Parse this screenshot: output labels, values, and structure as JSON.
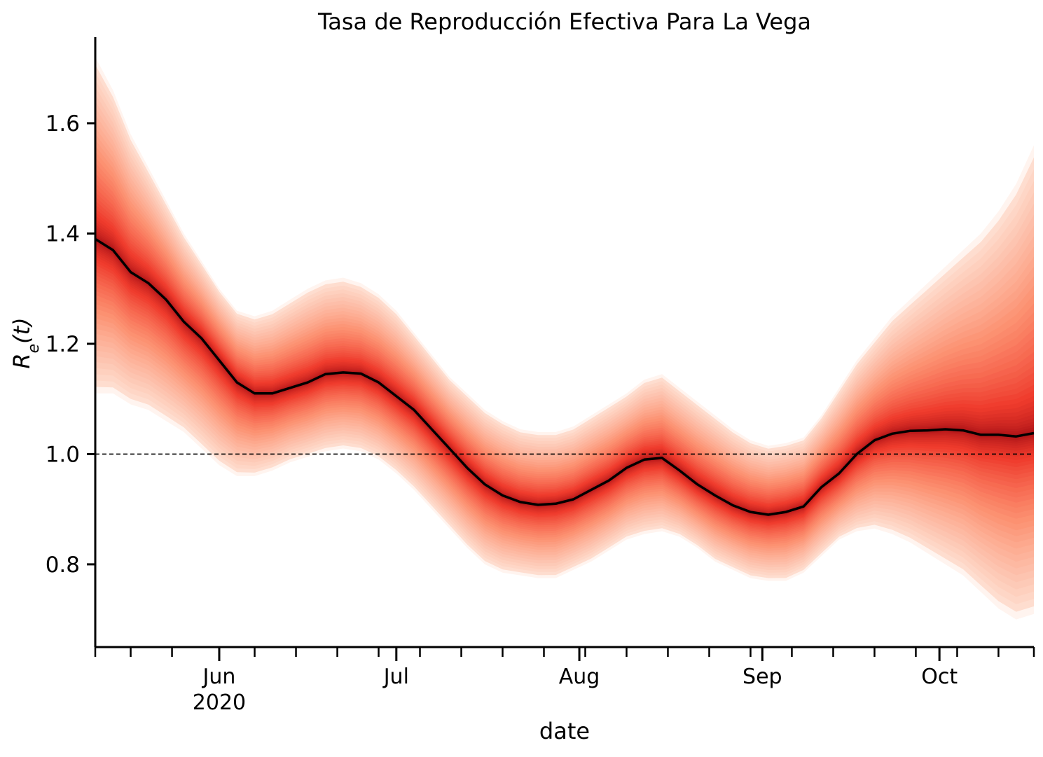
{
  "chart_data": {
    "type": "area",
    "title": "Tasa de Reproducción Efectiva Para La Vega",
    "xlabel": "date",
    "ylabel_base": "R",
    "ylabel_sub": "e",
    "ylabel_rest": "(t)",
    "xlim": [
      "2020-05-11",
      "2020-10-17"
    ],
    "ylim": [
      0.65,
      1.76
    ],
    "grid": false,
    "legend": "none",
    "x_ticks_major": [
      {
        "date": "2020-06-01",
        "label": "Jun",
        "sublabel": "2020"
      },
      {
        "date": "2020-07-01",
        "label": "Jul",
        "sublabel": ""
      },
      {
        "date": "2020-08-01",
        "label": "Aug",
        "sublabel": ""
      },
      {
        "date": "2020-09-01",
        "label": "Sep",
        "sublabel": ""
      },
      {
        "date": "2020-10-01",
        "label": "Oct",
        "sublabel": ""
      }
    ],
    "x_ticks_minor": [
      "2020-05-11",
      "2020-05-17",
      "2020-05-24",
      "2020-06-07",
      "2020-06-14",
      "2020-06-21",
      "2020-06-28",
      "2020-07-05",
      "2020-07-12",
      "2020-07-19",
      "2020-07-26",
      "2020-08-02",
      "2020-08-09",
      "2020-08-16",
      "2020-08-23",
      "2020-08-30",
      "2020-09-06",
      "2020-09-13",
      "2020-09-20",
      "2020-09-27",
      "2020-10-04",
      "2020-10-11",
      "2020-10-17"
    ],
    "y_ticks": [
      {
        "value": 0.8,
        "label": "0.8"
      },
      {
        "value": 1.0,
        "label": "1.0"
      },
      {
        "value": 1.2,
        "label": "1.2"
      },
      {
        "value": 1.4,
        "label": "1.4"
      },
      {
        "value": 1.6,
        "label": "1.6"
      }
    ],
    "reference_line": {
      "y": 1.0,
      "style": "dashed"
    },
    "colors": {
      "line": "#000000",
      "band_core": "#a50f15",
      "band_mid": "#ef3b2c",
      "band_outer": "#fc9272",
      "band_edge": "#fee0d2"
    },
    "series": [
      {
        "x": [
          "2020-05-11",
          "2020-05-14",
          "2020-05-17",
          "2020-05-20",
          "2020-05-23",
          "2020-05-26",
          "2020-05-29",
          "2020-06-01",
          "2020-06-04",
          "2020-06-07",
          "2020-06-10",
          "2020-06-13",
          "2020-06-16",
          "2020-06-19",
          "2020-06-22",
          "2020-06-25",
          "2020-06-28",
          "2020-07-01",
          "2020-07-04",
          "2020-07-07",
          "2020-07-10",
          "2020-07-13",
          "2020-07-16",
          "2020-07-19",
          "2020-07-22",
          "2020-07-25",
          "2020-07-28",
          "2020-07-31",
          "2020-08-03",
          "2020-08-06",
          "2020-08-09",
          "2020-08-12",
          "2020-08-15",
          "2020-08-18",
          "2020-08-21",
          "2020-08-24",
          "2020-08-27",
          "2020-08-30",
          "2020-09-02",
          "2020-09-05",
          "2020-09-08",
          "2020-09-11",
          "2020-09-14",
          "2020-09-17",
          "2020-09-20",
          "2020-09-23",
          "2020-09-26",
          "2020-09-29",
          "2020-10-02",
          "2020-10-05",
          "2020-10-08",
          "2020-10-11",
          "2020-10-14",
          "2020-10-17"
        ],
        "median": [
          1.39,
          1.37,
          1.33,
          1.31,
          1.28,
          1.24,
          1.21,
          1.17,
          1.13,
          1.11,
          1.11,
          1.12,
          1.13,
          1.145,
          1.148,
          1.146,
          1.13,
          1.105,
          1.08,
          1.045,
          1.01,
          0.975,
          0.945,
          0.925,
          0.913,
          0.908,
          0.91,
          0.918,
          0.935,
          0.952,
          0.975,
          0.99,
          0.993,
          0.97,
          0.945,
          0.925,
          0.907,
          0.895,
          0.89,
          0.895,
          0.905,
          0.94,
          0.965,
          1.0,
          1.025,
          1.037,
          1.042,
          1.043,
          1.045,
          1.043,
          1.035,
          1.035,
          1.032,
          1.038
        ],
        "outer_lower": [
          1.11,
          1.11,
          1.09,
          1.08,
          1.06,
          1.04,
          1.01,
          0.98,
          0.96,
          0.96,
          0.97,
          0.985,
          0.995,
          1.005,
          1.01,
          1.005,
          0.99,
          0.965,
          0.935,
          0.9,
          0.865,
          0.83,
          0.8,
          0.785,
          0.78,
          0.775,
          0.775,
          0.79,
          0.805,
          0.825,
          0.845,
          0.855,
          0.86,
          0.85,
          0.83,
          0.805,
          0.79,
          0.775,
          0.77,
          0.77,
          0.785,
          0.815,
          0.845,
          0.86,
          0.865,
          0.855,
          0.84,
          0.82,
          0.8,
          0.78,
          0.75,
          0.72,
          0.7,
          0.71
        ],
        "outer_upper": [
          1.72,
          1.66,
          1.58,
          1.52,
          1.46,
          1.4,
          1.35,
          1.3,
          1.26,
          1.25,
          1.26,
          1.28,
          1.3,
          1.315,
          1.32,
          1.31,
          1.29,
          1.26,
          1.22,
          1.18,
          1.14,
          1.11,
          1.08,
          1.06,
          1.045,
          1.04,
          1.04,
          1.05,
          1.07,
          1.09,
          1.11,
          1.135,
          1.145,
          1.12,
          1.095,
          1.07,
          1.045,
          1.025,
          1.015,
          1.02,
          1.03,
          1.07,
          1.12,
          1.17,
          1.21,
          1.25,
          1.28,
          1.31,
          1.34,
          1.37,
          1.4,
          1.44,
          1.49,
          1.56
        ]
      }
    ]
  }
}
